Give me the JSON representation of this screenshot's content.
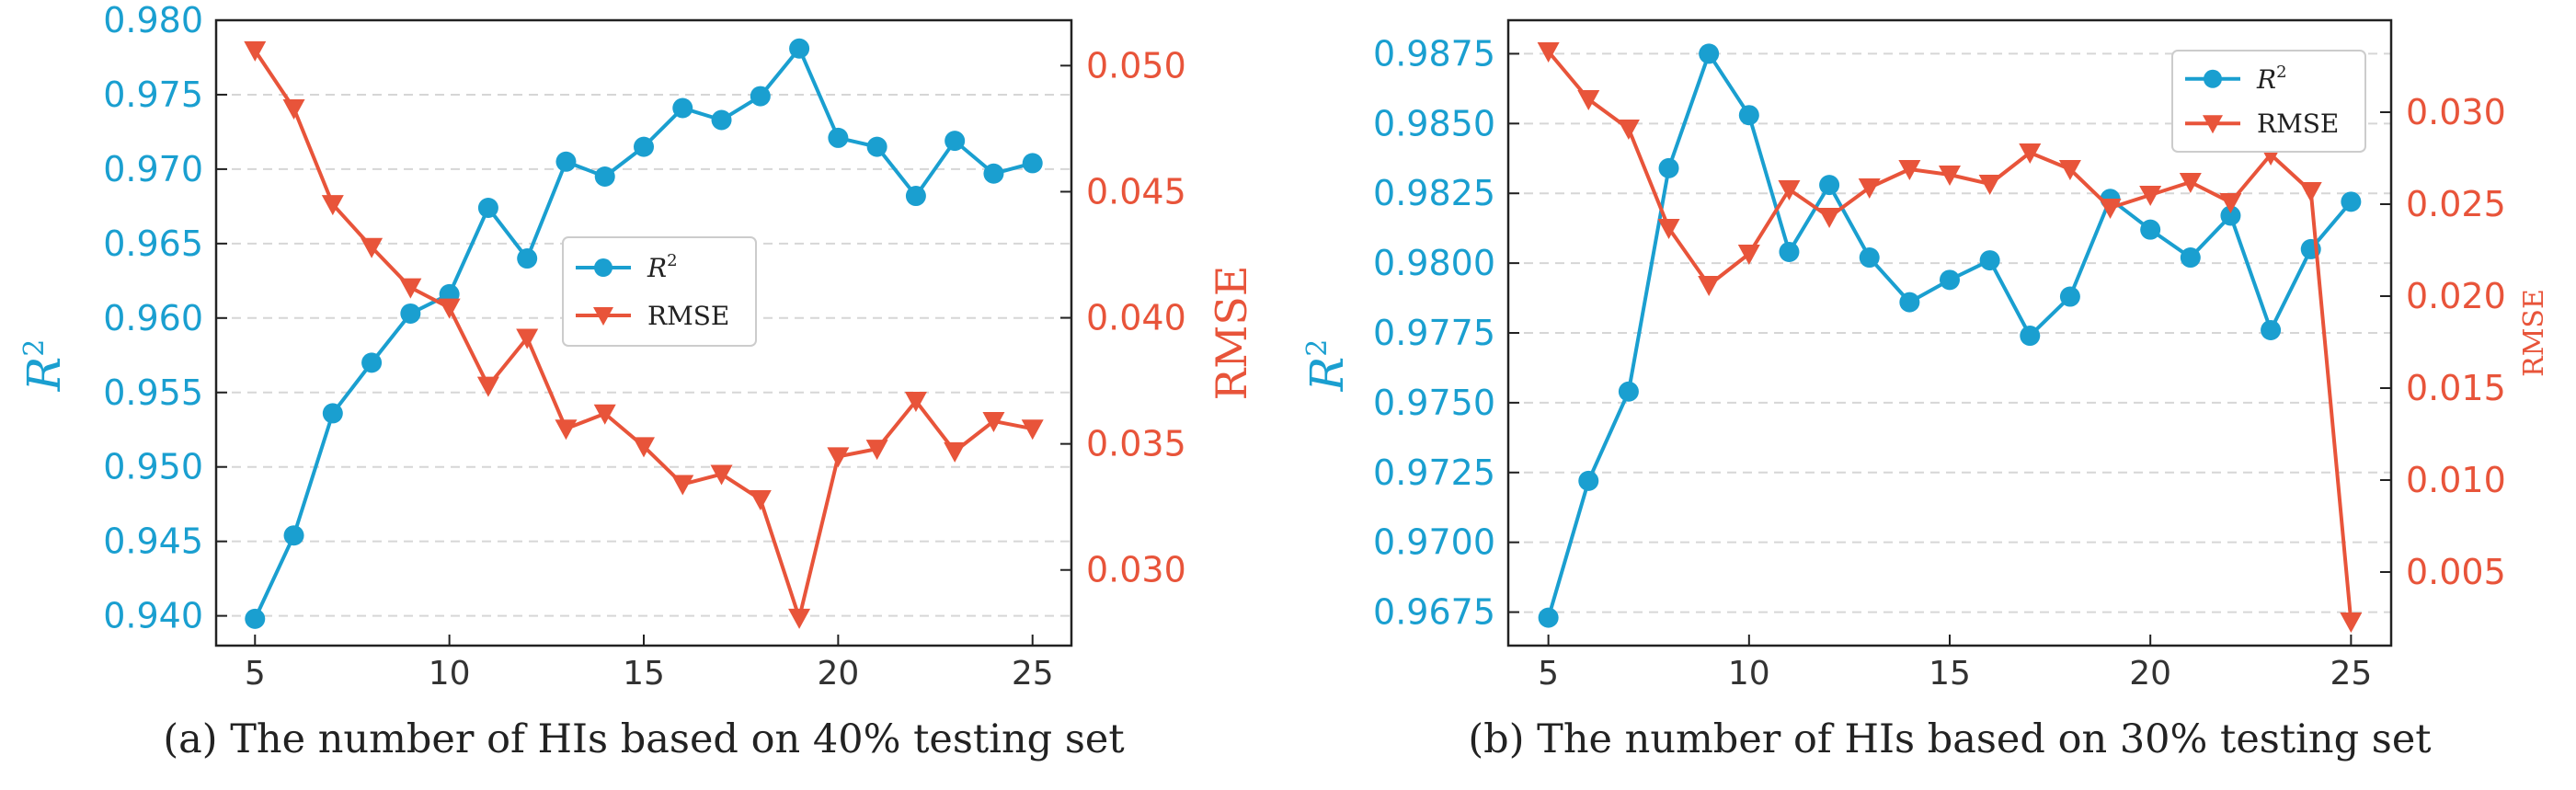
{
  "chart_data": [
    {
      "type": "line",
      "caption": "(a) The number of HIs based on 40% testing set",
      "x": [
        5,
        6,
        7,
        8,
        9,
        10,
        11,
        12,
        13,
        14,
        15,
        16,
        17,
        18,
        19,
        20,
        21,
        22,
        23,
        24,
        25
      ],
      "xlim": [
        4,
        26
      ],
      "xticks": [
        5,
        10,
        15,
        20,
        25
      ],
      "left_axis": {
        "label_base": "R",
        "label_sup": "2",
        "lim": [
          0.938,
          0.98
        ],
        "ticks": [
          "0.940",
          "0.945",
          "0.950",
          "0.955",
          "0.960",
          "0.965",
          "0.970",
          "0.975",
          "0.980"
        ],
        "color": "#1a9fd0"
      },
      "right_axis": {
        "label": "RMSE",
        "lim": [
          0.027,
          0.0518
        ],
        "ticks": [
          "0.030",
          "0.035",
          "0.040",
          "0.045",
          "0.050"
        ],
        "color": "#e8543a"
      },
      "series": [
        {
          "name": "R",
          "sup": "2",
          "axis": "left",
          "marker": "circle",
          "color": "#1a9fd0",
          "values": [
            0.9398,
            0.9454,
            0.9536,
            0.957,
            0.9603,
            0.9616,
            0.9674,
            0.964,
            0.9705,
            0.9695,
            0.9715,
            0.9741,
            0.9733,
            0.9749,
            0.9781,
            0.9721,
            0.9715,
            0.9682,
            0.9719,
            0.9697,
            0.9704
          ]
        },
        {
          "name": "RMSE",
          "axis": "right",
          "marker": "triangle-down",
          "color": "#e8543a",
          "values": [
            0.0506,
            0.0483,
            0.0445,
            0.0428,
            0.0412,
            0.0404,
            0.0373,
            0.0392,
            0.0356,
            0.0362,
            0.0349,
            0.0334,
            0.0338,
            0.0328,
            0.0281,
            0.0345,
            0.0348,
            0.0367,
            0.0347,
            0.0359,
            0.0356
          ]
        }
      ],
      "legend_position": "center-right"
    },
    {
      "type": "line",
      "caption": "(b) The number of HIs based on 30% testing set",
      "x": [
        5,
        6,
        7,
        8,
        9,
        10,
        11,
        12,
        13,
        14,
        15,
        16,
        17,
        18,
        19,
        20,
        21,
        22,
        23,
        24,
        25
      ],
      "xlim": [
        4,
        26
      ],
      "xticks": [
        5,
        10,
        15,
        20,
        25
      ],
      "left_axis": {
        "label_base": "R",
        "label_sup": "2",
        "lim": [
          0.9663,
          0.9887
        ],
        "ticks": [
          "0.9675",
          "0.9700",
          "0.9725",
          "0.9750",
          "0.9775",
          "0.9800",
          "0.9825",
          "0.9850",
          "0.9875"
        ],
        "color": "#1a9fd0"
      },
      "right_axis": {
        "label": "RMSE",
        "lim": [
          0.001,
          0.035
        ],
        "ticks": [
          "0.005",
          "0.010",
          "0.015",
          "0.020",
          "0.025",
          "0.030"
        ],
        "color": "#e8543a"
      },
      "series": [
        {
          "name": "R",
          "sup": "2",
          "axis": "left",
          "marker": "circle",
          "color": "#1a9fd0",
          "values": [
            0.9673,
            0.9722,
            0.9754,
            0.9834,
            0.9875,
            0.9853,
            0.9804,
            0.9828,
            0.9802,
            0.9786,
            0.9794,
            0.9801,
            0.9774,
            0.9788,
            0.9823,
            0.9812,
            0.9802,
            0.9817,
            0.9776,
            0.9805,
            0.9822
          ]
        },
        {
          "name": "RMSE",
          "axis": "right",
          "marker": "triangle-down",
          "color": "#e8543a",
          "values": [
            0.0333,
            0.0307,
            0.0291,
            0.0237,
            0.0206,
            0.0223,
            0.0258,
            0.0243,
            0.0259,
            0.0269,
            0.0266,
            0.0261,
            0.0278,
            0.0269,
            0.0248,
            0.0255,
            0.0262,
            0.0251,
            0.0277,
            0.0257,
            0.0023
          ]
        }
      ],
      "legend_position": "top-right"
    }
  ]
}
